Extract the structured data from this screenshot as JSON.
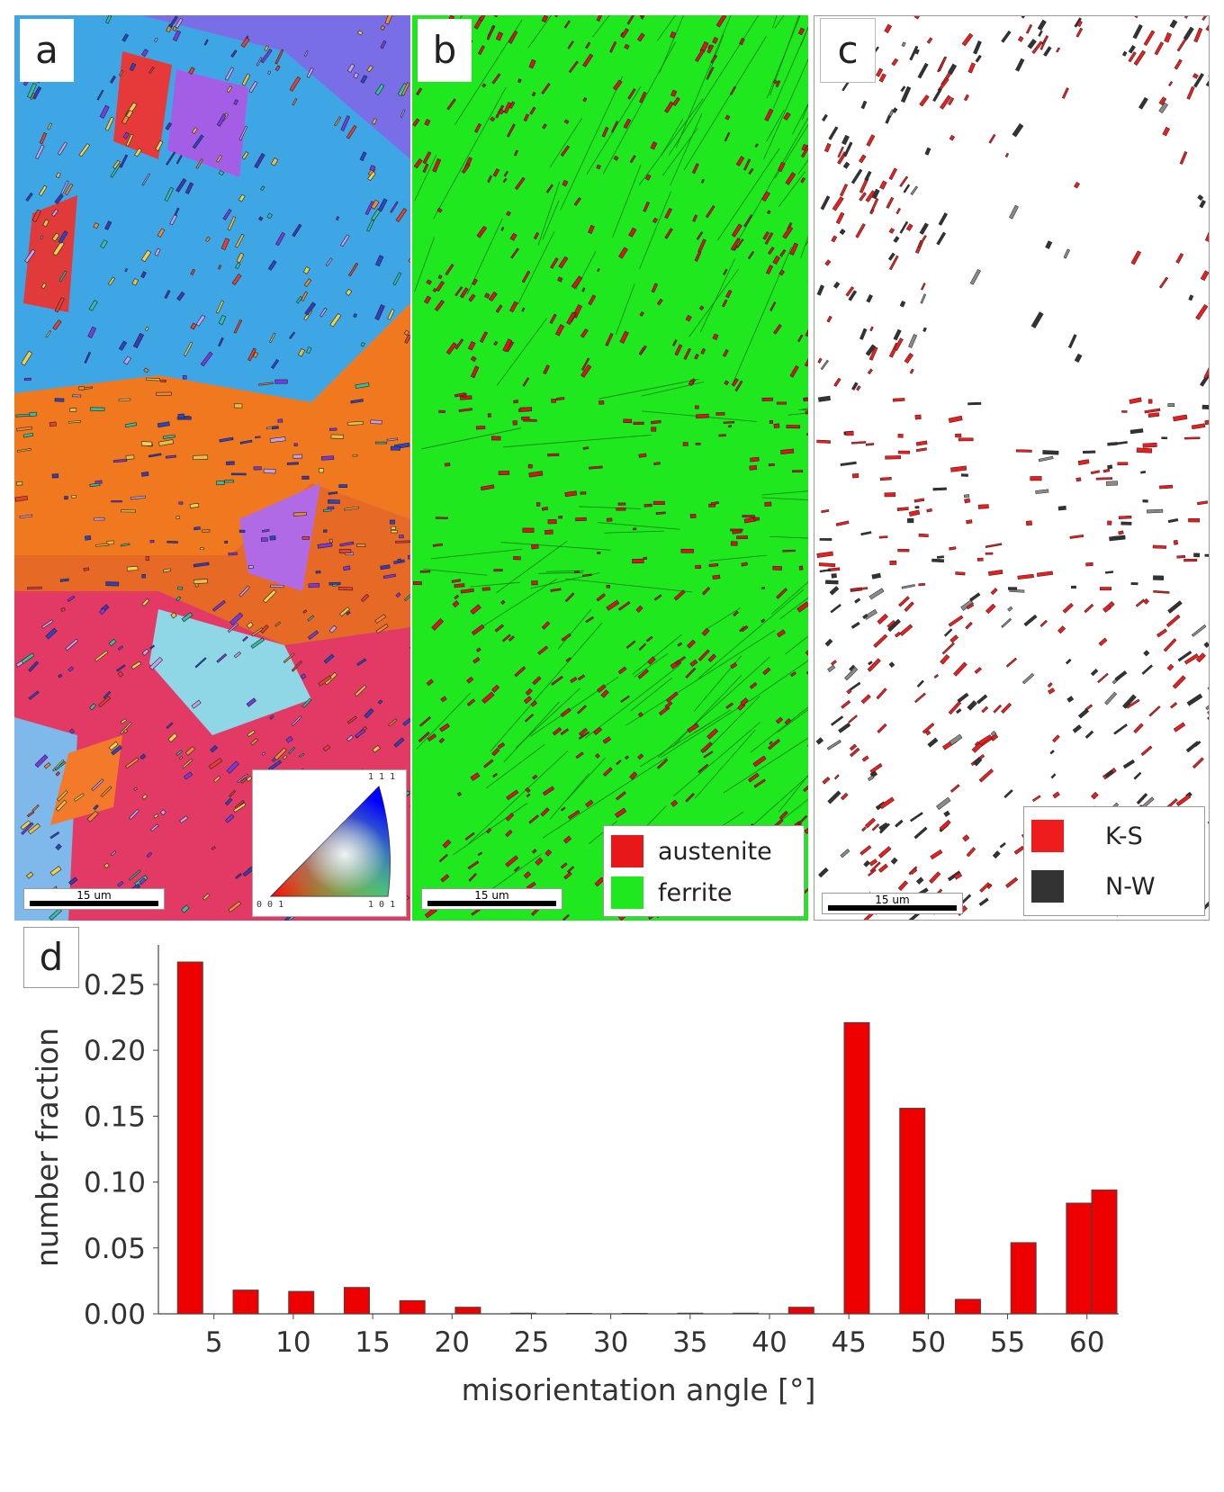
{
  "panels": {
    "a": {
      "letter": "a",
      "scale_label": "15 um"
    },
    "b": {
      "letter": "b",
      "scale_label": "15 um"
    },
    "c": {
      "letter": "c",
      "scale_label": "15 um"
    },
    "d": {
      "letter": "d"
    }
  },
  "ipf_key": {
    "top": "1 1 1",
    "left": "0 0 1",
    "right": "1 0 1"
  },
  "legend_b": [
    {
      "label": "austenite",
      "color": "#e81818"
    },
    {
      "label": "ferrite",
      "color": "#1fe81f"
    }
  ],
  "legend_c": [
    {
      "label": "K-S",
      "color": "#ee1c1c"
    },
    {
      "label": "N-W",
      "color": "#333333"
    }
  ],
  "colors": {
    "bar_fill": "#ee0000",
    "bar_stroke": "#444444"
  },
  "chart_data": {
    "type": "bar",
    "title": "",
    "xlabel": "misorientation angle [°]",
    "ylabel": "number fraction",
    "x_ticks": [
      5,
      10,
      15,
      20,
      25,
      30,
      35,
      40,
      45,
      50,
      55,
      60
    ],
    "y_ticks": [
      "0.00",
      "0.05",
      "0.10",
      "0.15",
      "0.20",
      "0.25"
    ],
    "ylim": [
      0,
      0.28
    ],
    "xlim": [
      1.5,
      62
    ],
    "x": [
      3.5,
      7,
      10.5,
      14,
      17.5,
      21,
      24.5,
      28,
      31.5,
      35,
      38.5,
      42,
      45.5,
      49,
      52.5,
      56,
      59.5,
      63
    ],
    "values": [
      0.267,
      0.018,
      0.017,
      0.02,
      0.01,
      0.005,
      0.0005,
      0.0,
      0.0,
      0.0005,
      0.0005,
      0.005,
      0.221,
      0.156,
      0.011,
      0.054,
      0.084,
      0.094
    ]
  }
}
